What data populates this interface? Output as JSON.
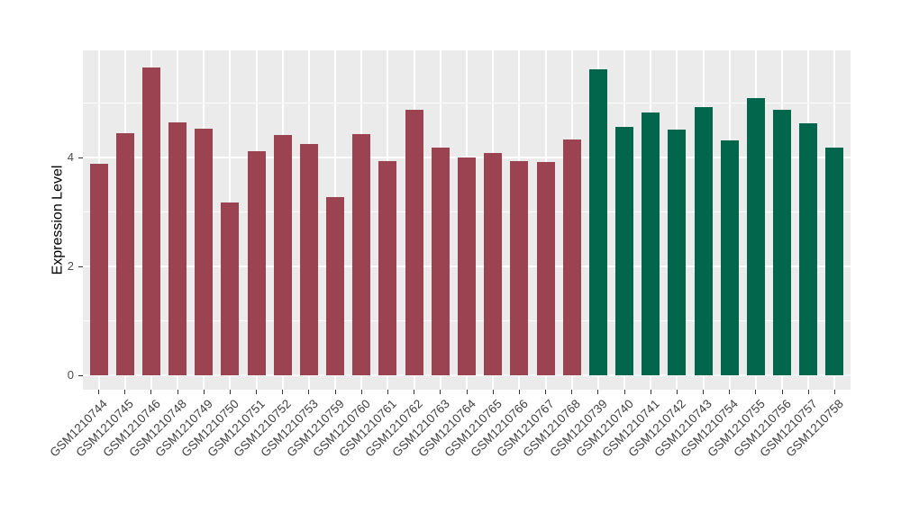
{
  "chart_data": {
    "type": "bar",
    "title": "",
    "xlabel": "",
    "ylabel": "Expression Level",
    "y_axis": {
      "ticks": [
        0,
        2,
        4
      ],
      "minor_ticks": [
        1,
        3,
        5
      ],
      "range": [
        -0.27,
        5.97
      ]
    },
    "legend": "none",
    "panel": {
      "background": "#EBEBEB",
      "grid_color": "#FFFFFF"
    },
    "palette": {
      "maroon": "#9C4352",
      "green": "#01664B"
    },
    "bars": [
      {
        "label": "GSM1210744",
        "value": 3.89,
        "group": "maroon"
      },
      {
        "label": "GSM1210745",
        "value": 4.44,
        "group": "maroon"
      },
      {
        "label": "GSM1210746",
        "value": 5.66,
        "group": "maroon"
      },
      {
        "label": "GSM1210748",
        "value": 4.65,
        "group": "maroon"
      },
      {
        "label": "GSM1210749",
        "value": 4.53,
        "group": "maroon"
      },
      {
        "label": "GSM1210750",
        "value": 3.17,
        "group": "maroon"
      },
      {
        "label": "GSM1210751",
        "value": 4.12,
        "group": "maroon"
      },
      {
        "label": "GSM1210752",
        "value": 4.42,
        "group": "maroon"
      },
      {
        "label": "GSM1210753",
        "value": 4.25,
        "group": "maroon"
      },
      {
        "label": "GSM1210759",
        "value": 3.27,
        "group": "maroon"
      },
      {
        "label": "GSM1210760",
        "value": 4.43,
        "group": "maroon"
      },
      {
        "label": "GSM1210761",
        "value": 3.94,
        "group": "maroon"
      },
      {
        "label": "GSM1210762",
        "value": 4.88,
        "group": "maroon"
      },
      {
        "label": "GSM1210763",
        "value": 4.19,
        "group": "maroon"
      },
      {
        "label": "GSM1210764",
        "value": 4.0,
        "group": "maroon"
      },
      {
        "label": "GSM1210765",
        "value": 4.09,
        "group": "maroon"
      },
      {
        "label": "GSM1210766",
        "value": 3.94,
        "group": "maroon"
      },
      {
        "label": "GSM1210767",
        "value": 3.91,
        "group": "maroon"
      },
      {
        "label": "GSM1210768",
        "value": 4.33,
        "group": "maroon"
      },
      {
        "label": "GSM1210739",
        "value": 5.62,
        "group": "green"
      },
      {
        "label": "GSM1210740",
        "value": 4.57,
        "group": "green"
      },
      {
        "label": "GSM1210741",
        "value": 4.82,
        "group": "green"
      },
      {
        "label": "GSM1210742",
        "value": 4.51,
        "group": "green"
      },
      {
        "label": "GSM1210743",
        "value": 4.93,
        "group": "green"
      },
      {
        "label": "GSM1210754",
        "value": 4.31,
        "group": "green"
      },
      {
        "label": "GSM1210755",
        "value": 5.09,
        "group": "green"
      },
      {
        "label": "GSM1210756",
        "value": 4.87,
        "group": "green"
      },
      {
        "label": "GSM1210757",
        "value": 4.62,
        "group": "green"
      },
      {
        "label": "GSM1210758",
        "value": 4.19,
        "group": "green"
      }
    ]
  }
}
